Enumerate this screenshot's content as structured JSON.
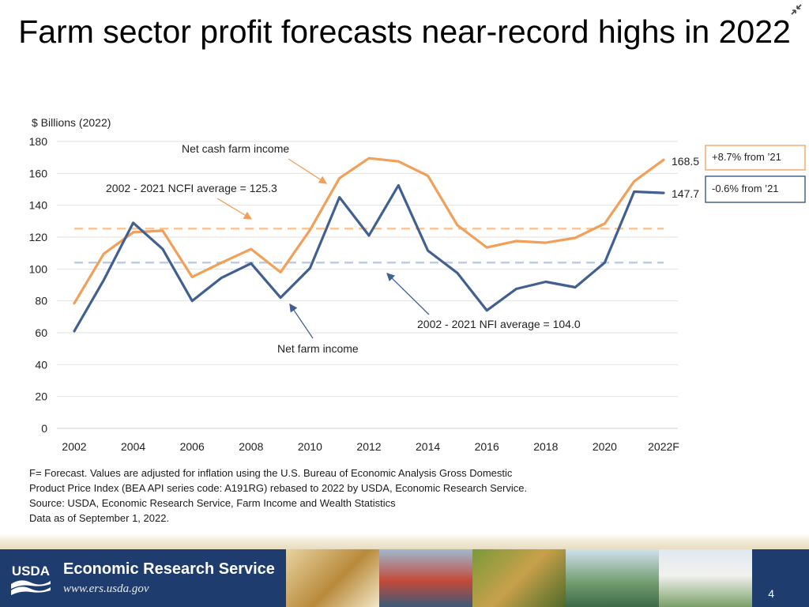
{
  "slide": {
    "title": "Farm sector profit forecasts near-record highs in 2022",
    "page_number": "4",
    "notes": [
      "F= Forecast. Values are adjusted for inflation using the U.S. Bureau of Economic Analysis Gross Domestic",
      "Product Price Index (BEA API series code: A191RG) rebased to 2022 by USDA, Economic Research Service.",
      "Source: USDA, Economic Research Service, Farm Income and Wealth Statistics",
      "Data as of September 1, 2022."
    ],
    "footer": {
      "logo_text": "USDA",
      "org_name": "Economic Research Service",
      "url": "www.ers.usda.gov"
    }
  },
  "chart_data": {
    "type": "line",
    "ylabel": "$ Billions (2022)",
    "ylim": [
      0,
      180
    ],
    "yticks": [
      0,
      20,
      40,
      60,
      80,
      100,
      120,
      140,
      160,
      180
    ],
    "x": [
      2002,
      2003,
      2004,
      2005,
      2006,
      2007,
      2008,
      2009,
      2010,
      2011,
      2012,
      2013,
      2014,
      2015,
      2016,
      2017,
      2018,
      2019,
      2020,
      2021,
      2022
    ],
    "xtick_labels": [
      "2002",
      "2004",
      "2006",
      "2008",
      "2010",
      "2012",
      "2014",
      "2016",
      "2018",
      "2020",
      "2022F"
    ],
    "xtick_years": [
      2002,
      2004,
      2006,
      2008,
      2010,
      2012,
      2014,
      2016,
      2018,
      2020,
      2022
    ],
    "grid": true,
    "series": [
      {
        "key": "ncfi",
        "name": "Net cash farm income",
        "color": "#f0a05a",
        "values": [
          78.5,
          109.5,
          123,
          124,
          95,
          104,
          112.5,
          98,
          124.5,
          157,
          169.5,
          167.5,
          158.5,
          127.5,
          113.5,
          117.5,
          116.5,
          119.5,
          128.5,
          155,
          168.5
        ],
        "end_label": "168.5",
        "change_note": "+8.7% from ’21"
      },
      {
        "key": "nfi",
        "name": "Net farm income",
        "color": "#41608f",
        "values": [
          61,
          93,
          129,
          112.5,
          80,
          94.5,
          103.5,
          82,
          100.5,
          145,
          121,
          152.5,
          111.5,
          97.5,
          74,
          87.5,
          92,
          88.5,
          104,
          148.5,
          147.7
        ],
        "end_label": "147.7",
        "change_note": "-0.6% from ’21"
      }
    ],
    "averages": [
      {
        "key": "ncfi_avg",
        "label": "2002 - 2021 NCFI average = 125.3",
        "value": 125.3,
        "color": "#f7c79b"
      },
      {
        "key": "nfi_avg",
        "label": "2002 - 2021 NFI average = 104.0",
        "value": 104.0,
        "color": "#b9cdea"
      }
    ]
  }
}
